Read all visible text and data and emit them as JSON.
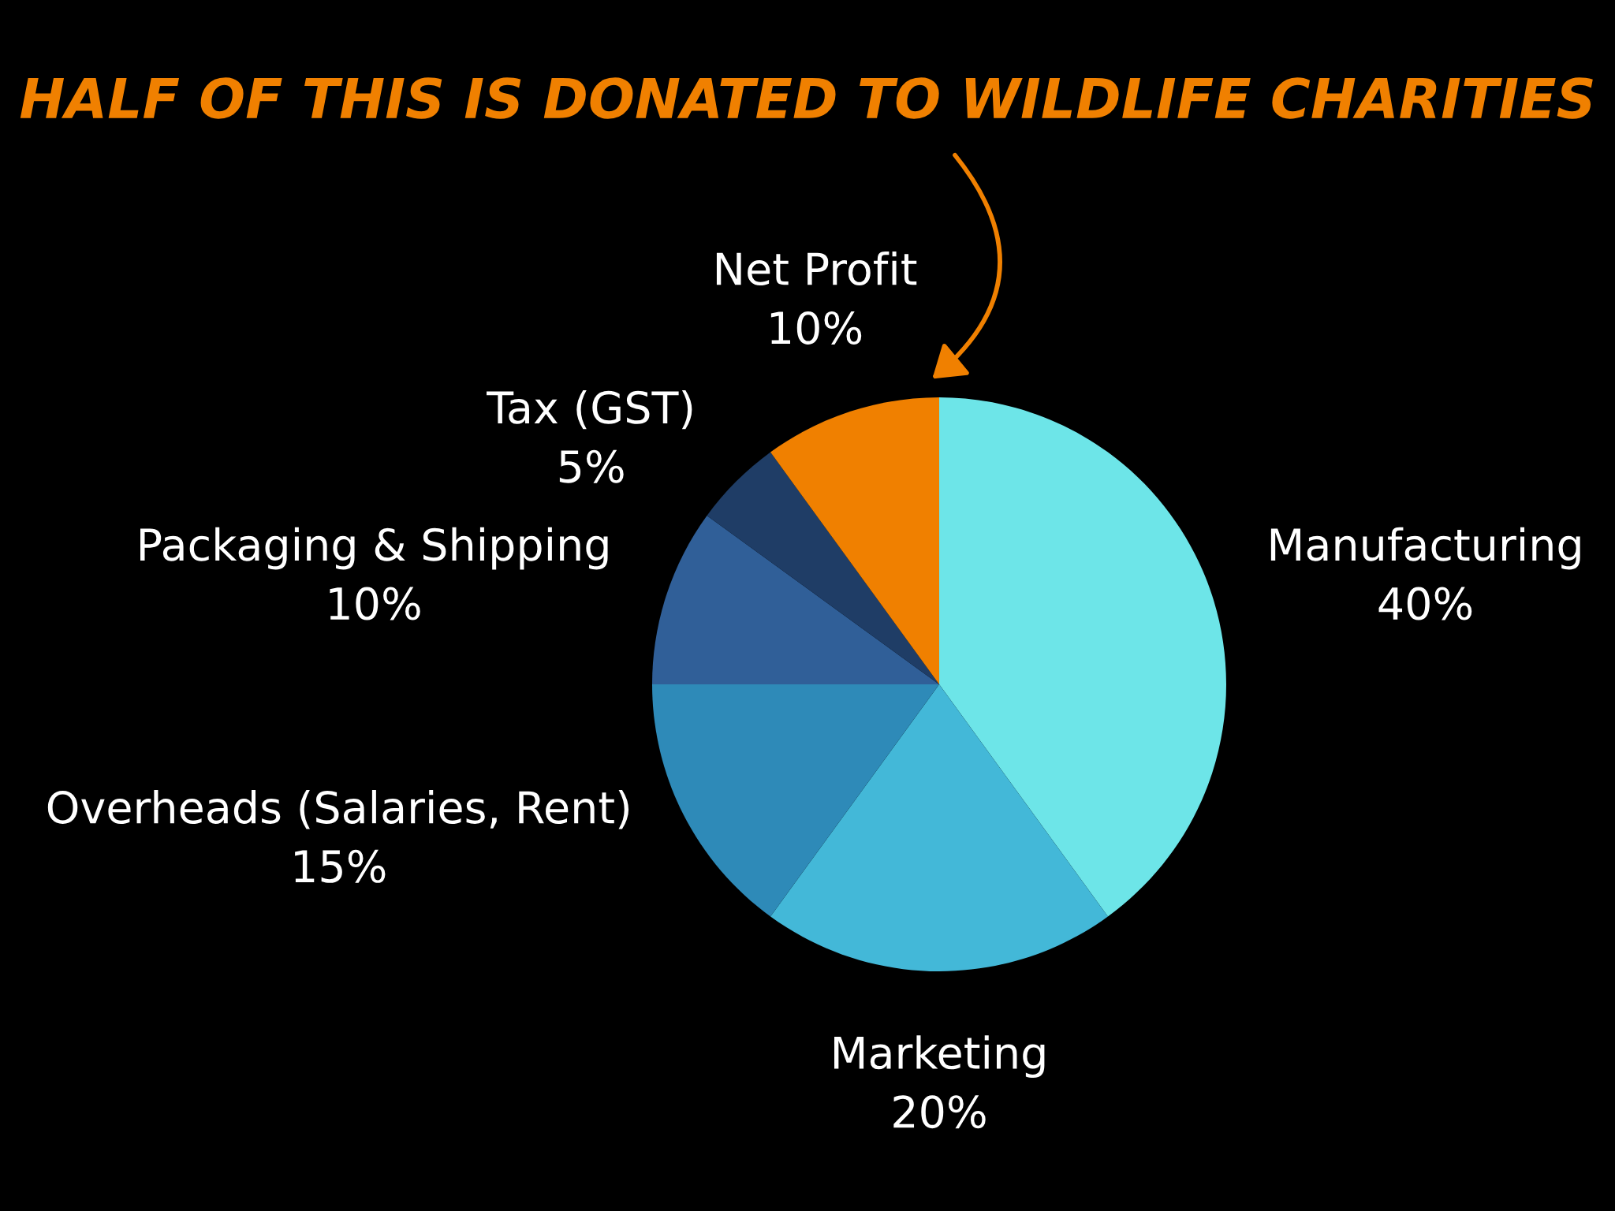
{
  "chart_data": {
    "type": "pie",
    "title": "HALF OF THIS IS DONATED TO WILDLIFE CHARITIES",
    "categories": [
      "Manufacturing",
      "Marketing",
      "Overheads (Salaries, Rent)",
      "Packaging & Shipping",
      "Tax (GST)",
      "Net Profit"
    ],
    "values": [
      40,
      20,
      15,
      10,
      5,
      10
    ],
    "colors": [
      "#6de5e8",
      "#43b8d8",
      "#2e8ab8",
      "#305f98",
      "#1f3d66",
      "#f08000"
    ],
    "value_labels": [
      "40%",
      "20%",
      "15%",
      "10%",
      "5%",
      "10%"
    ],
    "legend": false
  }
}
